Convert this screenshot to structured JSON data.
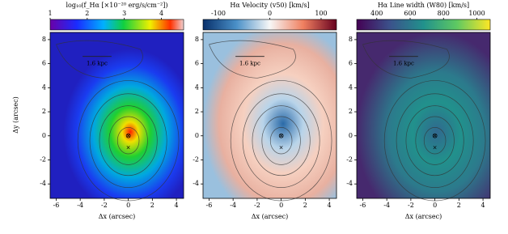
{
  "chart_data": [
    {
      "type": "map",
      "colorbar_label": "log₁₀(f_Hα [×10⁻²⁰ erg/s/cm⁻²])",
      "clim": [
        1,
        4.6
      ],
      "cticks": [
        1,
        2,
        3,
        4
      ],
      "xlabel": "Δx (arcsec)",
      "ylabel": "Δy (arcsec)",
      "xlim": [
        -6.5,
        4.6
      ],
      "ylim": [
        -5.2,
        8.6
      ],
      "xticks": [
        -6,
        -4,
        -2,
        0,
        2,
        4
      ],
      "yticks": [
        -4,
        -2,
        0,
        2,
        4,
        6,
        8
      ],
      "annotation": "1.6 kpc"
    },
    {
      "type": "map",
      "colorbar_label": "Hα Velocity (v50) [km/s]",
      "clim": [
        -130,
        130
      ],
      "cticks": [
        -100,
        0,
        100
      ],
      "xlabel": "Δx (arcsec)",
      "xlim": [
        -6.5,
        4.6
      ],
      "ylim": [
        -5.2,
        8.6
      ],
      "xticks": [
        -6,
        -4,
        -2,
        0,
        2,
        4
      ],
      "yticks": [
        -4,
        -2,
        0,
        2,
        4,
        6,
        8
      ],
      "annotation": "1.6 kpc"
    },
    {
      "type": "map",
      "colorbar_label": "Hα Line width (W80) [km/s]",
      "clim": [
        280,
        1080
      ],
      "cticks": [
        400,
        600,
        800,
        1000
      ],
      "xlabel": "Δx (arcsec)",
      "xlim": [
        -6.5,
        4.6
      ],
      "ylim": [
        -5.2,
        8.6
      ],
      "xticks": [
        -6,
        -4,
        -2,
        0,
        2,
        4
      ],
      "yticks": [
        -4,
        -2,
        0,
        2,
        4,
        6,
        8
      ],
      "annotation": "1.6 kpc"
    }
  ]
}
